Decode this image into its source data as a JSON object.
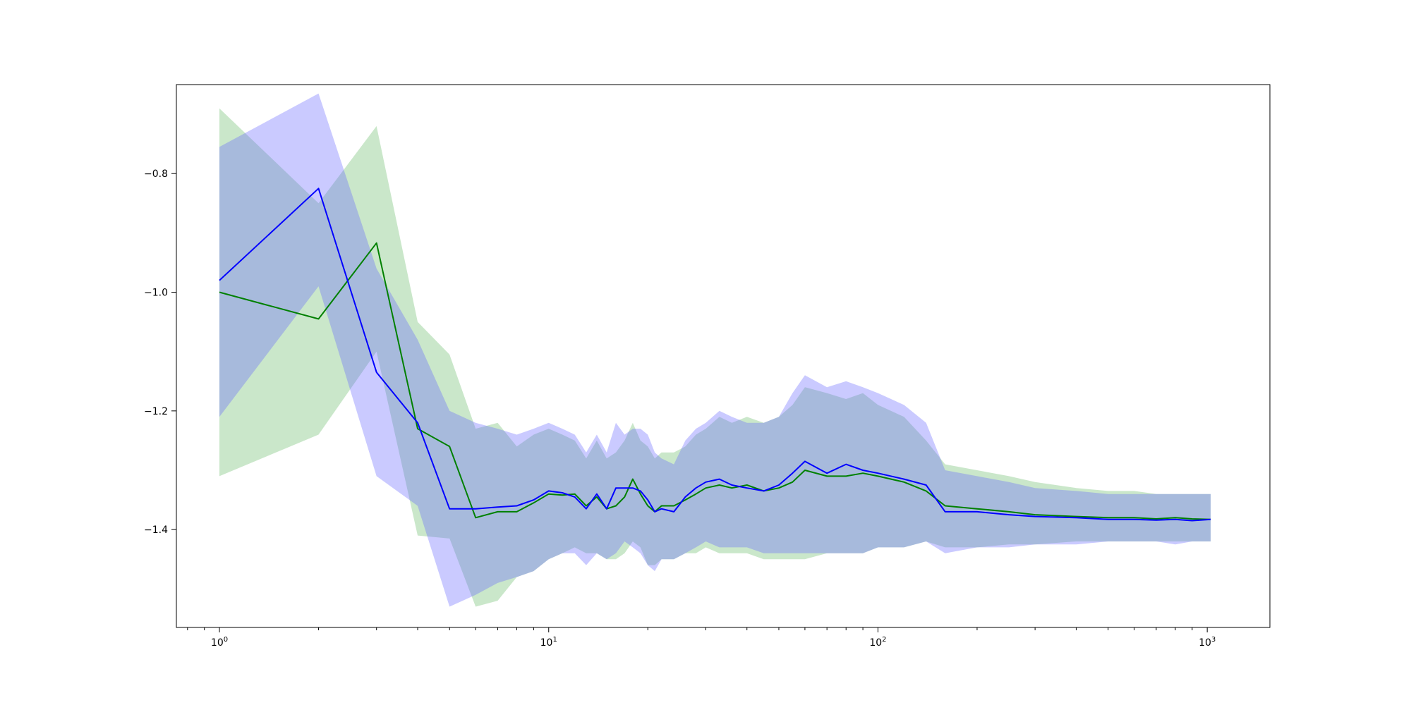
{
  "chart_data": {
    "type": "line",
    "title": "",
    "xlabel": "",
    "ylabel": "",
    "xscale": "log",
    "xlim": [
      0.74,
      1550
    ],
    "ylim": [
      -1.565,
      -0.65
    ],
    "grid": false,
    "legend": "none",
    "x_tick_labels": [
      {
        "value": 1,
        "base": "10",
        "exp": "0"
      },
      {
        "value": 10,
        "base": "10",
        "exp": "1"
      },
      {
        "value": 100,
        "base": "10",
        "exp": "2"
      },
      {
        "value": 1000,
        "base": "10",
        "exp": "3"
      }
    ],
    "y_tick_labels": [
      {
        "value": -0.8,
        "label": "−0.8"
      },
      {
        "value": -1.0,
        "label": "−1.0"
      },
      {
        "value": -1.2,
        "label": "−1.2"
      },
      {
        "value": -1.4,
        "label": "−1.4"
      }
    ],
    "series": [
      {
        "color": "#008000",
        "band_color": "#2ca02c",
        "x": [
          1,
          2,
          3,
          4,
          5,
          6,
          7,
          8,
          9,
          10,
          11,
          12,
          13,
          14,
          15,
          16,
          17,
          18,
          19,
          20,
          21,
          22,
          24,
          26,
          28,
          30,
          33,
          36,
          40,
          45,
          50,
          55,
          60,
          70,
          80,
          90,
          100,
          120,
          140,
          160,
          200,
          250,
          300,
          400,
          500,
          600,
          700,
          800,
          900,
          1024
        ],
        "y": [
          -1.0,
          -1.045,
          -0.917,
          -1.23,
          -1.26,
          -1.38,
          -1.37,
          -1.37,
          -1.355,
          -1.34,
          -1.342,
          -1.34,
          -1.36,
          -1.345,
          -1.365,
          -1.36,
          -1.345,
          -1.315,
          -1.34,
          -1.36,
          -1.37,
          -1.36,
          -1.36,
          -1.35,
          -1.34,
          -1.33,
          -1.325,
          -1.33,
          -1.325,
          -1.335,
          -1.33,
          -1.32,
          -1.3,
          -1.31,
          -1.31,
          -1.305,
          -1.31,
          -1.32,
          -1.335,
          -1.36,
          -1.365,
          -1.37,
          -1.375,
          -1.378,
          -1.38,
          -1.38,
          -1.382,
          -1.38,
          -1.382,
          -1.383
        ],
        "lower": [
          -1.31,
          -1.24,
          -1.1,
          -1.41,
          -1.415,
          -1.53,
          -1.52,
          -1.48,
          -1.47,
          -1.45,
          -1.44,
          -1.43,
          -1.44,
          -1.44,
          -1.45,
          -1.45,
          -1.44,
          -1.42,
          -1.43,
          -1.46,
          -1.46,
          -1.45,
          -1.45,
          -1.44,
          -1.44,
          -1.43,
          -1.44,
          -1.44,
          -1.44,
          -1.45,
          -1.45,
          -1.45,
          -1.45,
          -1.44,
          -1.44,
          -1.44,
          -1.43,
          -1.43,
          -1.42,
          -1.43,
          -1.43,
          -1.425,
          -1.425,
          -1.42,
          -1.42,
          -1.42,
          -1.42,
          -1.42,
          -1.42,
          -1.42
        ],
        "upper": [
          -0.69,
          -0.85,
          -0.72,
          -1.05,
          -1.105,
          -1.23,
          -1.22,
          -1.26,
          -1.24,
          -1.23,
          -1.24,
          -1.25,
          -1.28,
          -1.25,
          -1.28,
          -1.27,
          -1.25,
          -1.22,
          -1.25,
          -1.26,
          -1.28,
          -1.27,
          -1.27,
          -1.26,
          -1.24,
          -1.23,
          -1.21,
          -1.22,
          -1.21,
          -1.22,
          -1.21,
          -1.19,
          -1.16,
          -1.17,
          -1.18,
          -1.17,
          -1.19,
          -1.21,
          -1.25,
          -1.29,
          -1.3,
          -1.31,
          -1.32,
          -1.33,
          -1.335,
          -1.335,
          -1.34,
          -1.34,
          -1.34,
          -1.34
        ]
      },
      {
        "color": "#0000ff",
        "band_color": "#6666ff",
        "x": [
          1,
          2,
          3,
          4,
          5,
          6,
          7,
          8,
          9,
          10,
          11,
          12,
          13,
          14,
          15,
          16,
          17,
          18,
          19,
          20,
          21,
          22,
          24,
          26,
          28,
          30,
          33,
          36,
          40,
          45,
          50,
          55,
          60,
          70,
          80,
          90,
          100,
          120,
          140,
          160,
          200,
          250,
          300,
          400,
          500,
          600,
          700,
          800,
          900,
          1024
        ],
        "y": [
          -0.98,
          -0.825,
          -1.135,
          -1.22,
          -1.365,
          -1.365,
          -1.362,
          -1.36,
          -1.35,
          -1.335,
          -1.338,
          -1.345,
          -1.365,
          -1.34,
          -1.365,
          -1.33,
          -1.33,
          -1.33,
          -1.335,
          -1.35,
          -1.37,
          -1.365,
          -1.37,
          -1.345,
          -1.33,
          -1.32,
          -1.315,
          -1.325,
          -1.33,
          -1.335,
          -1.325,
          -1.305,
          -1.285,
          -1.305,
          -1.29,
          -1.3,
          -1.305,
          -1.315,
          -1.325,
          -1.37,
          -1.37,
          -1.375,
          -1.378,
          -1.38,
          -1.383,
          -1.383,
          -1.384,
          -1.383,
          -1.385,
          -1.383
        ],
        "lower": [
          -1.21,
          -0.99,
          -1.31,
          -1.36,
          -1.53,
          -1.51,
          -1.49,
          -1.48,
          -1.47,
          -1.45,
          -1.44,
          -1.44,
          -1.46,
          -1.44,
          -1.45,
          -1.44,
          -1.42,
          -1.43,
          -1.44,
          -1.46,
          -1.47,
          -1.45,
          -1.45,
          -1.44,
          -1.43,
          -1.42,
          -1.43,
          -1.43,
          -1.43,
          -1.44,
          -1.44,
          -1.44,
          -1.44,
          -1.44,
          -1.44,
          -1.44,
          -1.43,
          -1.43,
          -1.42,
          -1.44,
          -1.43,
          -1.43,
          -1.425,
          -1.425,
          -1.42,
          -1.42,
          -1.42,
          -1.425,
          -1.42,
          -1.42
        ],
        "upper": [
          -0.755,
          -0.665,
          -0.96,
          -1.08,
          -1.2,
          -1.22,
          -1.23,
          -1.24,
          -1.23,
          -1.22,
          -1.23,
          -1.24,
          -1.27,
          -1.24,
          -1.27,
          -1.22,
          -1.24,
          -1.23,
          -1.23,
          -1.24,
          -1.27,
          -1.28,
          -1.29,
          -1.25,
          -1.23,
          -1.22,
          -1.2,
          -1.21,
          -1.22,
          -1.22,
          -1.21,
          -1.17,
          -1.14,
          -1.16,
          -1.15,
          -1.16,
          -1.17,
          -1.19,
          -1.22,
          -1.3,
          -1.31,
          -1.32,
          -1.33,
          -1.335,
          -1.34,
          -1.34,
          -1.34,
          -1.34,
          -1.34,
          -1.34
        ]
      }
    ]
  }
}
